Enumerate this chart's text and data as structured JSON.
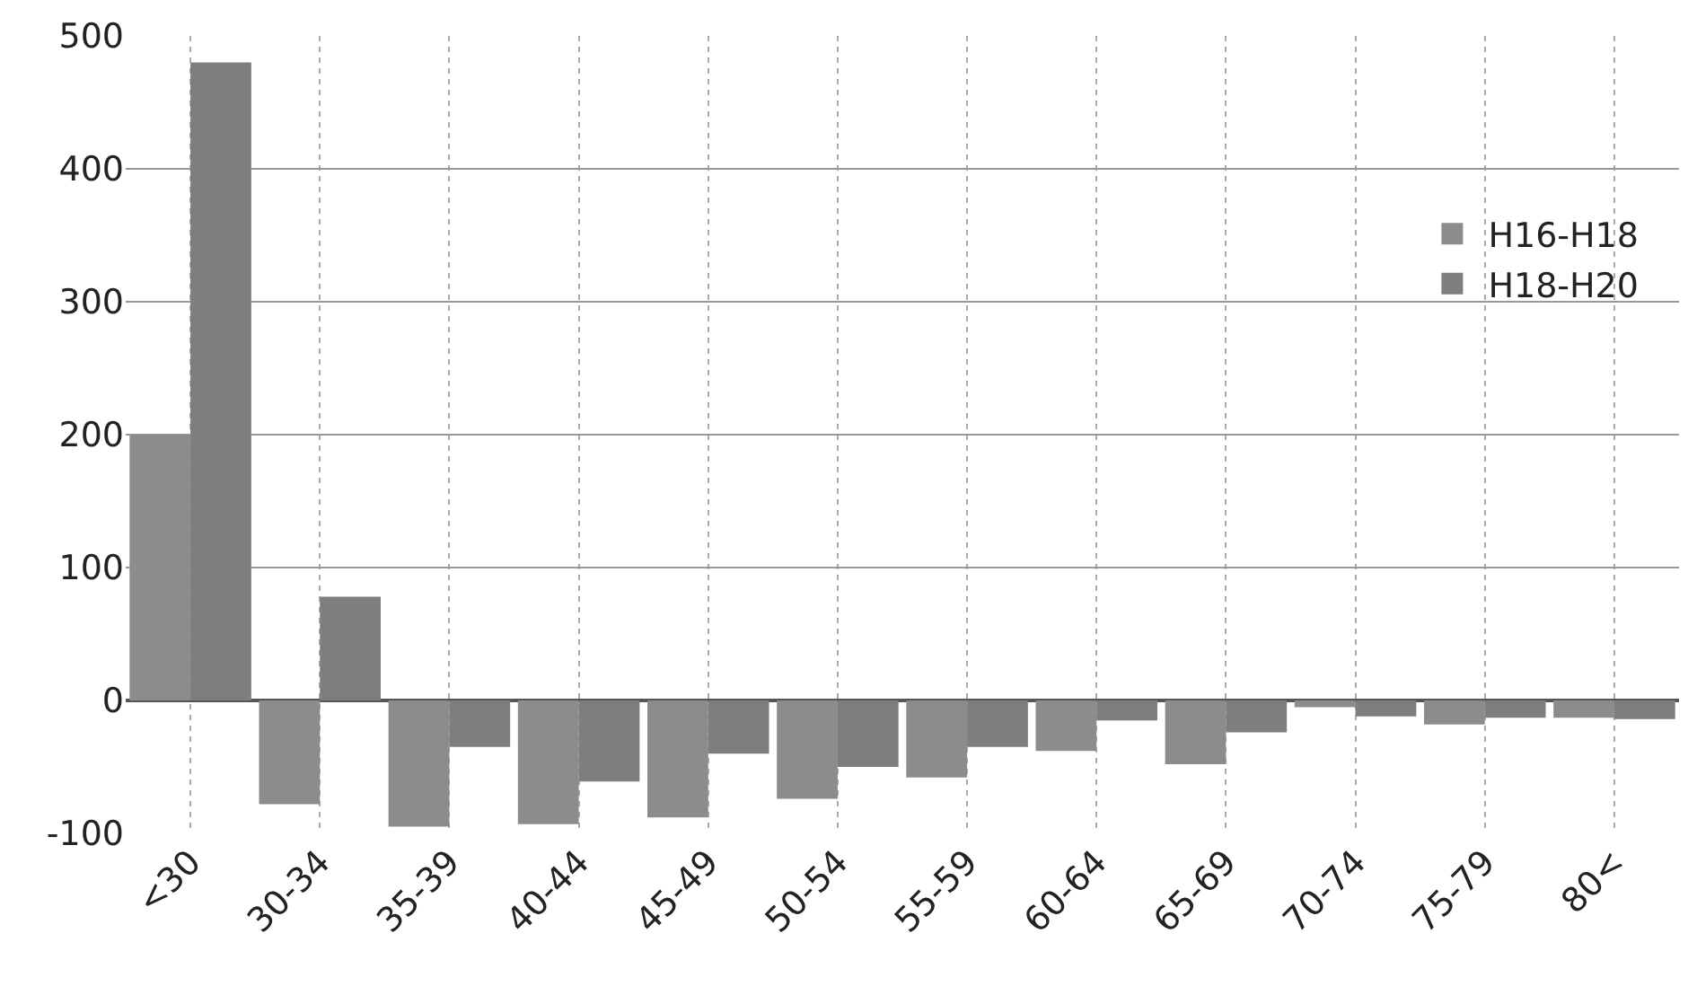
{
  "chart_data": {
    "type": "bar",
    "categories": [
      "<30",
      "30-34",
      "35-39",
      "40-44",
      "45-49",
      "50-54",
      "55-59",
      "60-64",
      "65-69",
      "70-74",
      "75-79",
      "80<"
    ],
    "series": [
      {
        "name": "H16-H18",
        "color": "#8c8c8c",
        "values": [
          200,
          -78,
          -95,
          -93,
          -88,
          -74,
          -58,
          -38,
          -48,
          -5,
          -18,
          -13
        ]
      },
      {
        "name": "H18-H20",
        "color": "#7e7e7e",
        "values": [
          480,
          78,
          -35,
          -61,
          -40,
          -50,
          -35,
          -15,
          -24,
          -12,
          -13,
          -14
        ]
      }
    ],
    "ylim": [
      -100,
      500
    ],
    "yticks": [
      -100,
      0,
      100,
      200,
      300,
      400,
      500
    ],
    "grid": true,
    "legend": "right"
  }
}
